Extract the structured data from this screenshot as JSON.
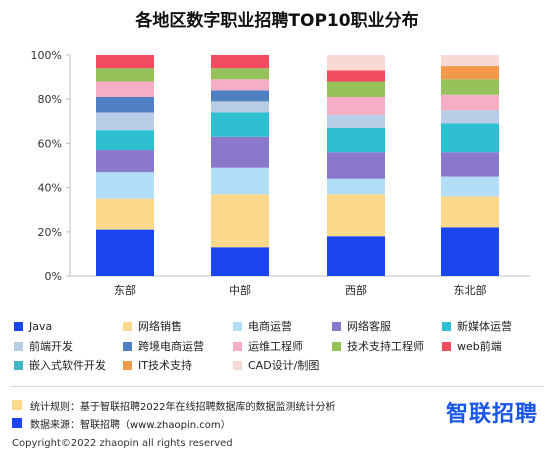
{
  "chart_data": {
    "type": "bar",
    "stacked": true,
    "title": "各地区数字职业招聘TOP10职业分布",
    "categories": [
      "东部",
      "中部",
      "西部",
      "东北部"
    ],
    "ylim": [
      0,
      100
    ],
    "yticks": [
      "0%",
      "20%",
      "40%",
      "60%",
      "80%",
      "100%"
    ],
    "grid": false,
    "legend_position": "bottom",
    "series": [
      {
        "name": "Java",
        "color": "#1a45f0",
        "values": [
          21,
          13,
          18,
          22
        ]
      },
      {
        "name": "网络销售",
        "color": "#fcd98c",
        "values": [
          14,
          24,
          19,
          14
        ]
      },
      {
        "name": "电商运营",
        "color": "#b3def7",
        "values": [
          12,
          12,
          7,
          9
        ]
      },
      {
        "name": "网络客服",
        "color": "#8a78cc",
        "values": [
          10,
          14,
          12,
          11
        ]
      },
      {
        "name": "新媒体运营",
        "color": "#2ebfd1",
        "values": [
          9,
          11,
          11,
          13
        ]
      },
      {
        "name": "前端开发",
        "color": "#b9cde6",
        "values": [
          8,
          5,
          6,
          6
        ]
      },
      {
        "name": "跨境电商运营",
        "color": "#4e80c2",
        "values": [
          7,
          5,
          0,
          0
        ]
      },
      {
        "name": "运维工程师",
        "color": "#f7adc4",
        "values": [
          7,
          5,
          8,
          7
        ]
      },
      {
        "name": "技术支持工程师",
        "color": "#96c25c",
        "values": [
          6,
          5,
          7,
          7
        ]
      },
      {
        "name": "web前端",
        "color": "#f24a5e",
        "values": [
          6,
          6,
          5,
          0
        ]
      },
      {
        "name": "嵌入式软件开发",
        "color": "#3db8c8",
        "values": [
          0,
          0,
          0,
          0
        ]
      },
      {
        "name": "IT技术支持",
        "color": "#f29a4a",
        "values": [
          0,
          0,
          0,
          6
        ]
      },
      {
        "name": "CAD设计/制图",
        "color": "#f9d9d3",
        "values": [
          0,
          0,
          7,
          5
        ]
      }
    ]
  },
  "footer": {
    "rule_label": "统计规则：基于智联招聘2022年在线招聘数据库的数据监测统计分析",
    "rule_color": "#fcd98c",
    "source_label": "数据来源：智联招聘（www.zhaopin.com）",
    "source_color": "#1a45f0",
    "brand": "智联招聘",
    "brand_color": "#1a56e8",
    "copyright": "Copyright©2022 zhaopin all rights reserved"
  }
}
